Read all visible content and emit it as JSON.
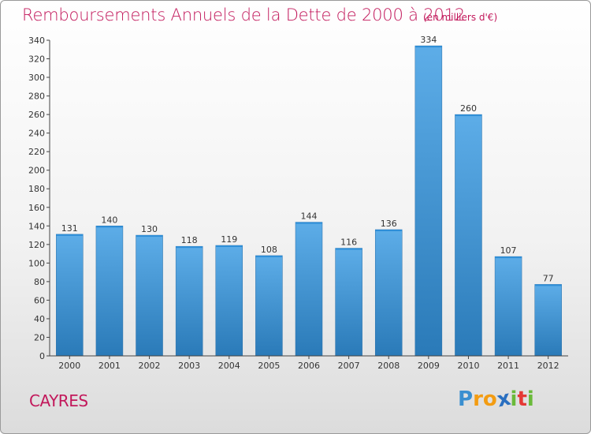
{
  "title": "Remboursements Annuels de la Dette de 2000 à 2012",
  "subtitle": "(en milliers d'€)",
  "commune": "CAYRES",
  "logo": {
    "text": "Proxiti",
    "letters": [
      "P",
      "r",
      "o",
      "x",
      "i",
      "t",
      "i"
    ]
  },
  "colors": {
    "title": "#c2185b",
    "bar_top": "#5dade8",
    "bar_bottom": "#2a7ab8",
    "logo": [
      "#3a8fd0",
      "#f39c12",
      "#f39c12",
      "#2a6fc0",
      "#6aba3a",
      "#e53935",
      "#6aba3a"
    ]
  },
  "chart_data": {
    "type": "bar",
    "title": "Remboursements Annuels de la Dette de 2000 à 2012",
    "subtitle": "(en milliers d'€)",
    "categories": [
      "2000",
      "2001",
      "2002",
      "2003",
      "2004",
      "2005",
      "2006",
      "2007",
      "2008",
      "2009",
      "2010",
      "2011",
      "2012"
    ],
    "values": [
      131,
      140,
      130,
      118,
      119,
      108,
      144,
      116,
      136,
      334,
      260,
      107,
      77
    ],
    "ylim": [
      0,
      340
    ],
    "yticks": [
      0,
      20,
      40,
      60,
      80,
      100,
      120,
      140,
      160,
      180,
      200,
      220,
      240,
      260,
      280,
      300,
      320,
      340
    ],
    "grid": false,
    "legend": "none"
  }
}
